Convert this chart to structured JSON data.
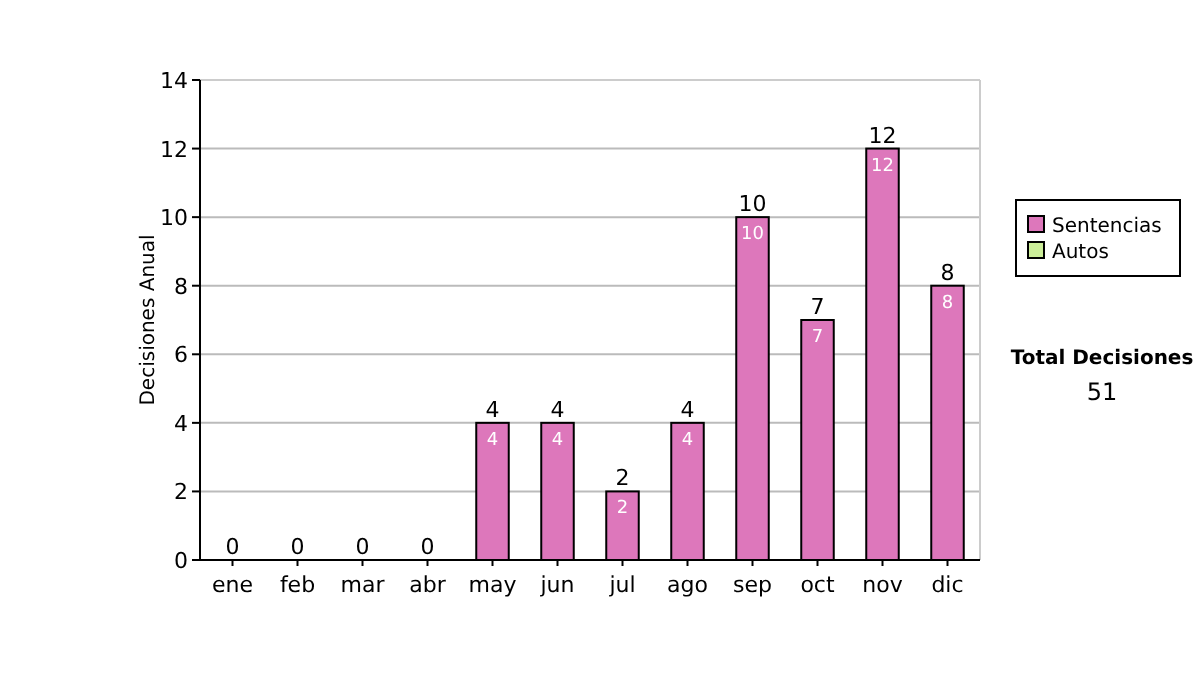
{
  "chart_data": {
    "type": "bar",
    "stacked": true,
    "ylabel": "Decisiones Anual",
    "categories": [
      "ene",
      "feb",
      "mar",
      "abr",
      "may",
      "jun",
      "jul",
      "ago",
      "sep",
      "oct",
      "nov",
      "dic"
    ],
    "series": [
      {
        "name": "Sentencias",
        "color": "#dd77bb",
        "values": [
          0,
          0,
          0,
          0,
          4,
          4,
          2,
          4,
          10,
          7,
          12,
          8
        ],
        "value_labels": [
          null,
          null,
          null,
          null,
          "4",
          "4",
          "2",
          "4",
          "10",
          "7",
          "12",
          "8"
        ]
      },
      {
        "name": "Autos",
        "color": "#ccee99",
        "values": [
          0,
          0,
          0,
          0,
          0,
          0,
          0,
          0,
          0,
          0,
          0,
          0
        ]
      }
    ],
    "totals": [
      "0",
      "0",
      "0",
      "0",
      "4",
      "4",
      "2",
      "4",
      "10",
      "7",
      "12",
      "8"
    ],
    "ylim": [
      0,
      14
    ],
    "yticks": [
      0,
      2,
      4,
      6,
      8,
      10,
      12,
      14
    ],
    "grid": "y",
    "legend": "right",
    "annotations": [
      "Total Decisiones",
      "51"
    ]
  }
}
